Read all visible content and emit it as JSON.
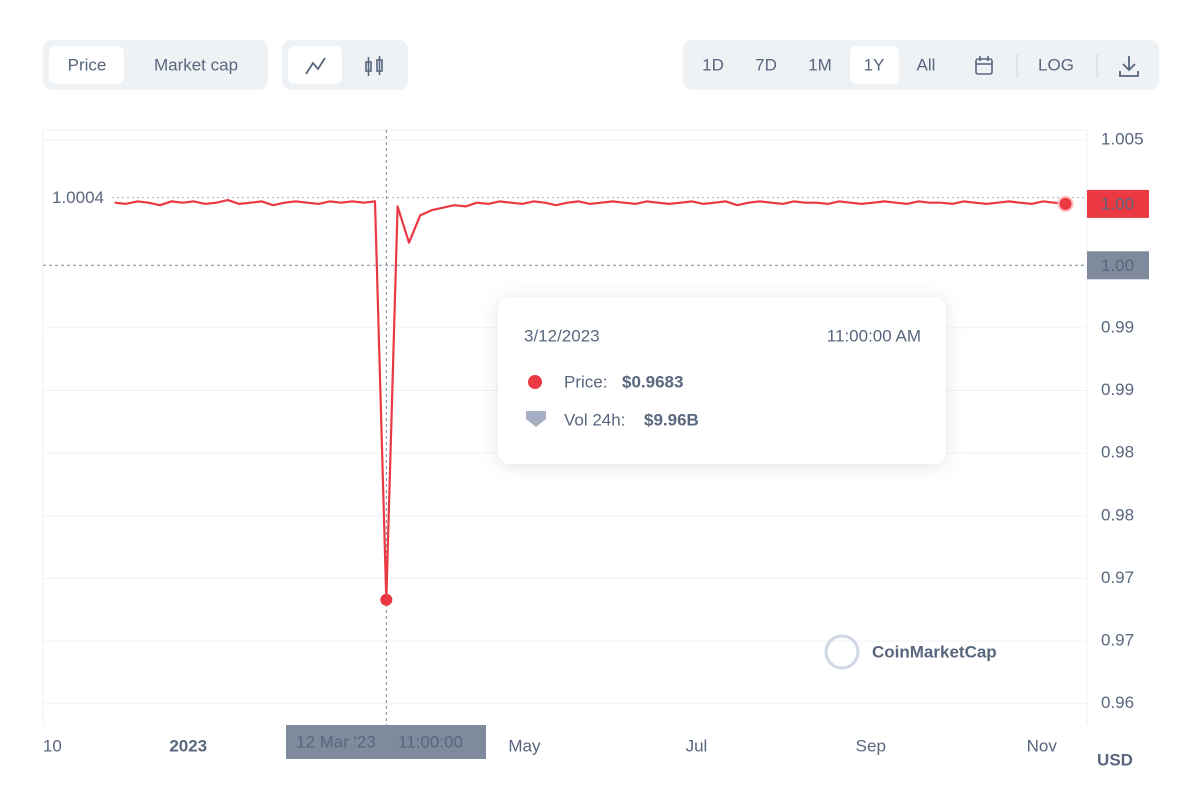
{
  "toolbar": {
    "views": [
      "Price",
      "Market cap"
    ],
    "ranges": [
      "1D",
      "7D",
      "1M",
      "1Y",
      "All"
    ],
    "log": "LOG"
  },
  "chart_data": {
    "type": "line",
    "series": [
      {
        "name": "Price",
        "color": "#ea3943",
        "values": [
          1.0,
          0.9999,
          1.0001,
          1.0,
          0.9998,
          1.0001,
          1.0,
          1.0001,
          0.9999,
          1.0,
          1.0002,
          0.9999,
          1.0,
          1.0001,
          0.9998,
          1.0,
          1.0001,
          1.0,
          0.9999,
          1.0001,
          1.0,
          1.0001,
          1.0,
          1.0001,
          0.9683,
          0.9997,
          0.9968,
          0.999,
          0.9994,
          0.9996,
          0.9998,
          0.9997,
          1.0,
          0.9999,
          1.0001,
          1.0,
          0.9999,
          1.0001,
          1.0,
          0.9998,
          1.0,
          1.0001,
          0.9999,
          1.0,
          1.0001,
          1.0,
          0.9999,
          1.0001,
          1.0,
          0.9999,
          1.0,
          1.0001,
          0.9999,
          1.0,
          1.0001,
          0.9998,
          1.0,
          1.0001,
          1.0,
          0.9999,
          1.0001,
          1.0,
          1.0,
          0.9999,
          1.0001,
          1.0,
          0.9999,
          1.0,
          1.0001,
          1.0,
          0.9999,
          1.0001,
          1.0,
          1.0,
          0.9999,
          1.0001,
          1.0,
          0.9999,
          1.0,
          1.0001,
          1.0,
          0.9999,
          1.0001,
          1.0,
          0.9999
        ]
      }
    ],
    "xlim": [
      -6.33,
      85.9
    ],
    "xticks": [
      {
        "value": -5.5,
        "label": "10"
      },
      {
        "value": 6.5,
        "label": "2023"
      },
      {
        "value": 36.2,
        "label": "May"
      },
      {
        "value": 51.4,
        "label": "Jul"
      },
      {
        "value": 66.8,
        "label": "Sep"
      },
      {
        "value": 81.9,
        "label": "Nov"
      }
    ],
    "ylim": [
      0.9583,
      1.0058
    ],
    "yticks": [
      1.005,
      0.99,
      {
        "value": 0.985,
        "label": "0.99"
      },
      0.98,
      {
        "value": 0.975,
        "label": "0.98"
      },
      0.97,
      {
        "value": 0.965,
        "label": "0.97"
      },
      0.96
    ],
    "grid": true,
    "reference_line": 1.0004,
    "last_price_label": "1.00",
    "crosshair": {
      "index": 24,
      "y": {
        "value": 0.995,
        "label": "1.00"
      },
      "x_label": [
        "12 Mar '23",
        "11:00:00"
      ]
    },
    "tooltip": {
      "date": "3/12/2023",
      "time": "11:00:00 AM",
      "price_label": "Price:",
      "price": "$0.9683",
      "volume_label": "Vol 24h:",
      "volume": "$9.96B"
    },
    "watermark": "CoinMarketCap",
    "currency": "USD"
  }
}
